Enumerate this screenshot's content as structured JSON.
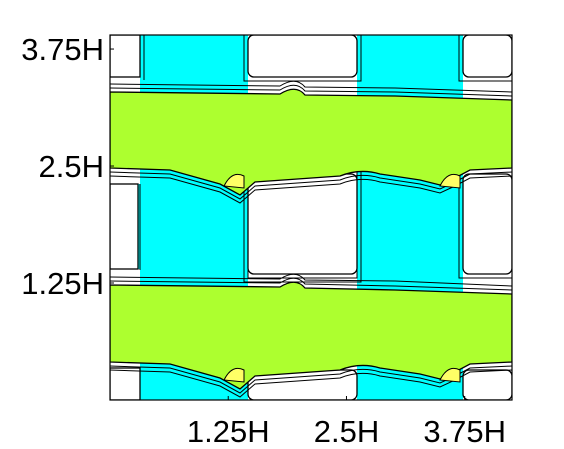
{
  "chart_data": {
    "type": "contour",
    "title": "",
    "xlabel": "",
    "ylabel": "",
    "xlim": [
      0,
      4.25
    ],
    "ylim": [
      0,
      3.9
    ],
    "x_unit": "H",
    "y_unit": "H",
    "x_ticks": [
      {
        "value": 1.25,
        "label": "1.25H"
      },
      {
        "value": 2.5,
        "label": "2.5H"
      },
      {
        "value": 3.75,
        "label": "3.75H"
      }
    ],
    "y_ticks": [
      {
        "value": 1.25,
        "label": "1.25H"
      },
      {
        "value": 2.5,
        "label": "2.5H"
      },
      {
        "value": 3.75,
        "label": "3.75H"
      }
    ],
    "colors": {
      "band_fill": "#adff2f",
      "cell_fill": "#00ffff",
      "pocket_fill": "#ffff66",
      "background": "#ffffff",
      "contour_line": "#000000"
    }
  }
}
